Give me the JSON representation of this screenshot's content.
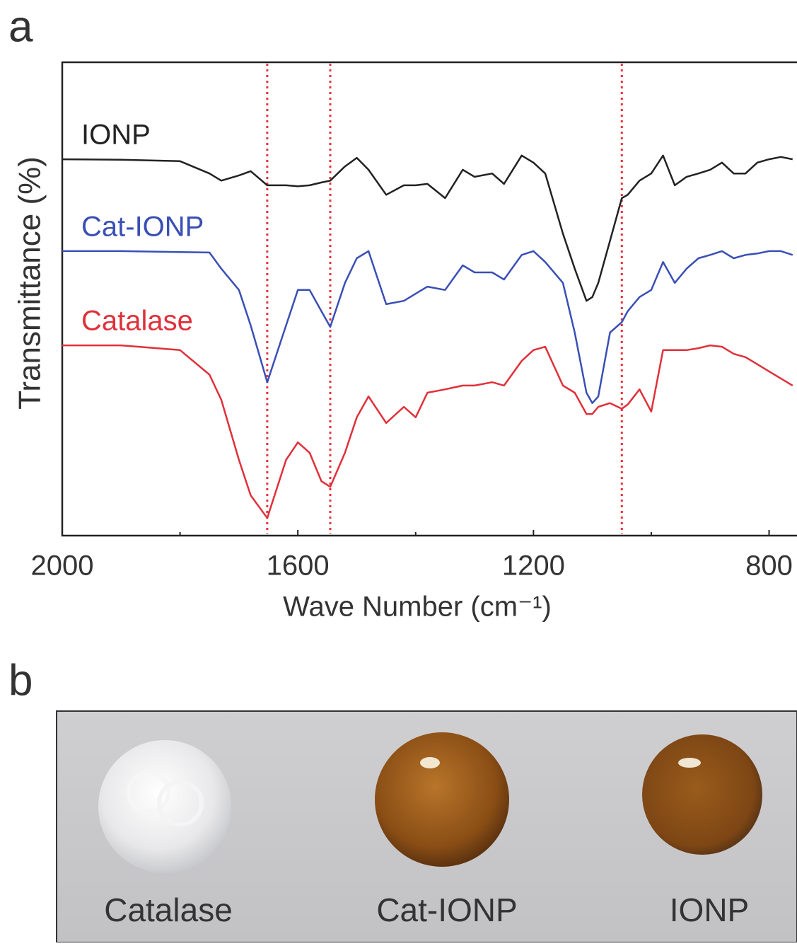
{
  "panel_labels": [
    "a",
    "b"
  ],
  "chart_data": {
    "type": "line",
    "xlabel": "Wave Number (cm⁻¹)",
    "ylabel": "Transmittance (%)",
    "xlim": [
      2000,
      755
    ],
    "ylim": [
      0,
      100
    ],
    "xticks": [
      2000,
      1600,
      1200,
      800
    ],
    "xminorticks": [
      1800,
      1400,
      1000
    ],
    "reference_lines": [
      1652,
      1545,
      1050
    ],
    "reference_color": "#e8323c",
    "x": [
      2000,
      1900,
      1800,
      1750,
      1730,
      1700,
      1680,
      1652,
      1620,
      1600,
      1580,
      1560,
      1545,
      1520,
      1500,
      1480,
      1450,
      1420,
      1400,
      1380,
      1350,
      1320,
      1300,
      1270,
      1250,
      1220,
      1200,
      1180,
      1150,
      1130,
      1110,
      1100,
      1090,
      1070,
      1050,
      1040,
      1020,
      1000,
      980,
      960,
      940,
      920,
      900,
      880,
      860,
      840,
      820,
      800,
      780,
      760
    ],
    "series": [
      {
        "name": "IONP",
        "color": "#222222",
        "values": [
          79.5,
          79.4,
          79.1,
          76.5,
          75.0,
          76.1,
          77.0,
          74.0,
          74.0,
          73.8,
          74.0,
          74.6,
          75.0,
          78.0,
          79.8,
          77.3,
          72.0,
          74.0,
          74.0,
          74.3,
          71.3,
          77.3,
          75.8,
          76.5,
          74.3,
          80.3,
          78.8,
          76.5,
          63.8,
          56.4,
          49.6,
          50.4,
          53.4,
          62.3,
          71.3,
          72.0,
          75.0,
          76.5,
          80.3,
          74.0,
          75.8,
          76.5,
          77.3,
          78.8,
          76.5,
          76.5,
          78.8,
          79.5,
          80.0,
          79.5
        ]
      },
      {
        "name": "Cat-IONP",
        "color": "#3a4fb5",
        "values": [
          60.1,
          60.1,
          59.9,
          59.8,
          56.4,
          51.9,
          44.4,
          32.4,
          44.4,
          51.9,
          51.9,
          47.4,
          44.1,
          53.4,
          58.6,
          60.1,
          48.9,
          49.6,
          51.1,
          52.6,
          51.9,
          57.1,
          55.6,
          55.6,
          54.1,
          59.3,
          60.1,
          57.8,
          53.4,
          42.9,
          30.2,
          28.0,
          29.4,
          42.9,
          45.1,
          47.4,
          50.4,
          51.9,
          57.8,
          53.4,
          56.4,
          58.6,
          59.3,
          60.1,
          58.6,
          59.3,
          59.6,
          60.1,
          60.1,
          59.3
        ]
      },
      {
        "name": "Catalase",
        "color": "#e0303a",
        "values": [
          40.2,
          40.2,
          39.2,
          34.0,
          28.7,
          16.0,
          8.5,
          3.7,
          16.0,
          19.7,
          17.5,
          11.5,
          10.3,
          17.5,
          25.0,
          29.4,
          23.8,
          27.2,
          25.0,
          30.2,
          30.9,
          31.7,
          31.7,
          32.4,
          31.7,
          36.9,
          39.2,
          39.9,
          31.7,
          30.2,
          25.7,
          25.7,
          27.2,
          28.0,
          26.8,
          27.7,
          30.9,
          26.2,
          39.2,
          39.2,
          39.2,
          39.6,
          40.2,
          39.9,
          38.4,
          37.7,
          36.2,
          34.7,
          33.2,
          31.7
        ]
      }
    ]
  },
  "photo": {
    "labels": [
      "Catalase",
      "Cat-IONP",
      "IONP"
    ]
  }
}
